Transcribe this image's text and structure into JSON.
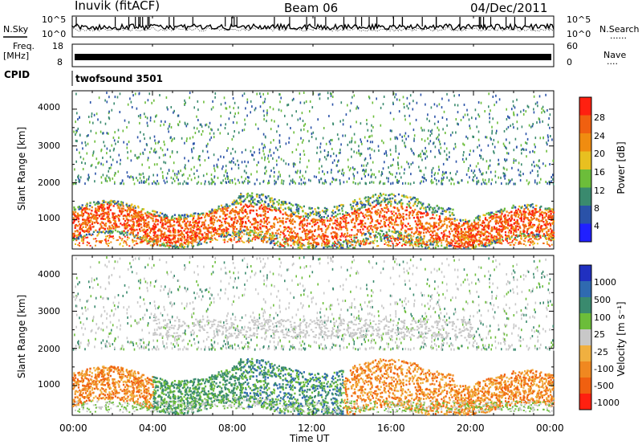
{
  "header": {
    "station": "Inuvik (fitACF)",
    "beam": "Beam 06",
    "date": "04/Dec/2011"
  },
  "labels": {
    "nsky": "N.Sky",
    "nsearch": "N.Search",
    "freq": "Freq.",
    "freq_unit": "[MHz]",
    "nave": "Nave",
    "cpid": "CPID",
    "cpid_value": "twofsound 3501",
    "dots": "......",
    "dots_short": "...."
  },
  "colors": {
    "power": [
      "#2020ff",
      "#2a52a8",
      "#3a8a6e",
      "#6cbd3a",
      "#e8c020",
      "#f08c10",
      "#f06010",
      "#ff2010"
    ],
    "velocity": [
      "#2030c0",
      "#2f6ab0",
      "#3a8a6e",
      "#6cbd3a",
      "#c8c8c8",
      "#f0b040",
      "#f08820",
      "#f06010",
      "#ff2010"
    ]
  },
  "chart_data": [
    {
      "type": "line",
      "name": "noise-panel",
      "yticks_left": [
        "10^5",
        "10^0"
      ],
      "yticks_right": [
        "10^5",
        "10^0"
      ]
    },
    {
      "type": "line",
      "name": "freq-panel",
      "yticks_left": [
        "18",
        "8"
      ],
      "yticks_right": [
        "60",
        "0"
      ]
    },
    {
      "type": "heatmap",
      "name": "power-panel",
      "ylabel": "Slant Range [km]",
      "yticks": [
        1000,
        2000,
        3000,
        4000
      ],
      "ylim": [
        200,
        4500
      ],
      "xlim": [
        0,
        24
      ],
      "colorbar": {
        "label": "Power [dB]",
        "ticks": [
          "28",
          "24",
          "20",
          "16",
          "12",
          "8",
          "4"
        ]
      }
    },
    {
      "type": "heatmap",
      "name": "velocity-panel",
      "ylabel": "Slant Range [km]",
      "yticks": [
        1000,
        2000,
        3000,
        4000
      ],
      "ylim": [
        200,
        4500
      ],
      "xlim": [
        0,
        24
      ],
      "xlabel": "Time UT",
      "xticks": [
        "00:00",
        "04:00",
        "08:00",
        "12:00",
        "16:00",
        "20:00",
        "00:00"
      ],
      "colorbar": {
        "label": "Velocity [m s⁻¹]",
        "ticks": [
          "1000",
          "500",
          "100",
          "25",
          "-25",
          "-100",
          "-500",
          "-1000"
        ]
      }
    }
  ]
}
